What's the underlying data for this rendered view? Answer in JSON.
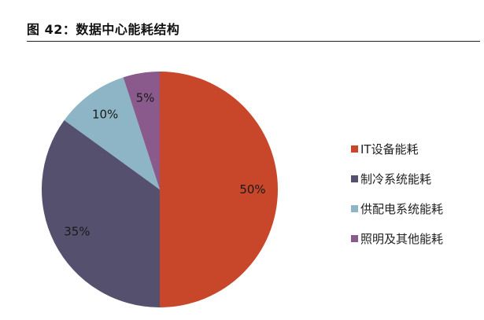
{
  "header": {
    "title": "图 42：数据中心能耗结构"
  },
  "chart_data": {
    "type": "pie",
    "title": "",
    "legend_position": "right",
    "slices": [
      {
        "label": "IT设备能耗",
        "value": 50,
        "value_label": "50%",
        "color": "#C8472A"
      },
      {
        "label": "制冷系统能耗",
        "value": 35,
        "value_label": "35%",
        "color": "#55506E"
      },
      {
        "label": "供配电系统能耗",
        "value": 10,
        "value_label": "10%",
        "color": "#8DB5C6"
      },
      {
        "label": "照明及其他能耗",
        "value": 5,
        "value_label": "5%",
        "color": "#8A5A8C"
      }
    ]
  }
}
